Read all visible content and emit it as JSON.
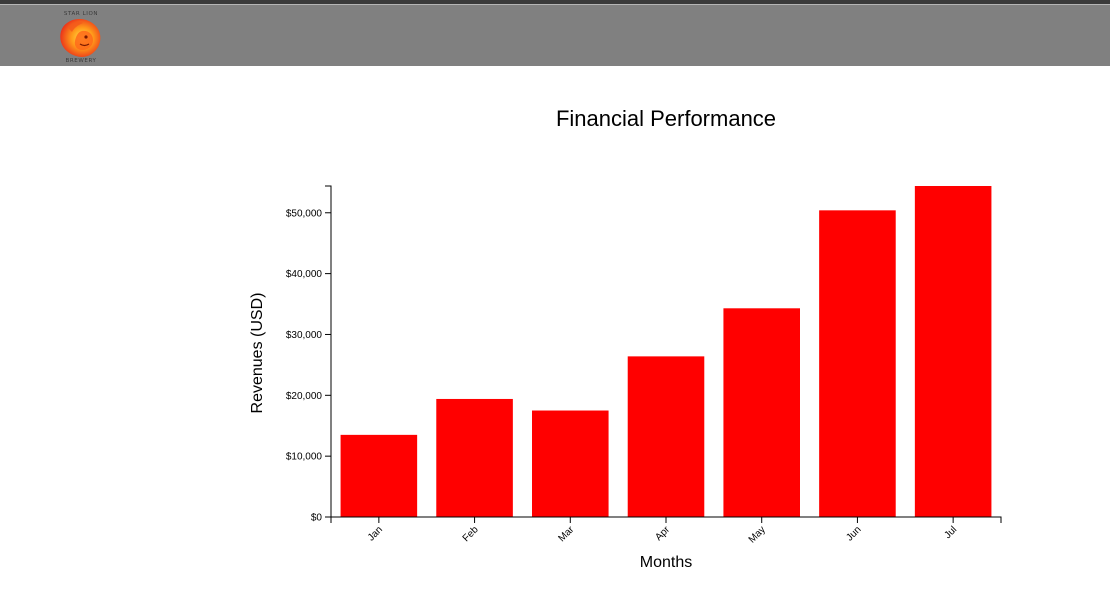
{
  "brand": {
    "top_text": "STAR LION",
    "bottom_text": "BREWERY"
  },
  "colors": {
    "header": "#808080",
    "bar": "#ff0000",
    "axis": "#000000"
  },
  "chart_data": {
    "type": "bar",
    "title": "Financial Performance",
    "xlabel": "Months",
    "ylabel": "Revenues (USD)",
    "categories": [
      "Jan",
      "Feb",
      "Mar",
      "Apr",
      "May",
      "Jun",
      "Jul"
    ],
    "values": [
      13500,
      19400,
      17500,
      26400,
      34300,
      50400,
      54400
    ],
    "ylim": [
      0,
      54400
    ],
    "yticks": [
      0,
      10000,
      20000,
      30000,
      40000,
      50000
    ],
    "ytick_labels": [
      "$0",
      "$10,000",
      "$20,000",
      "$30,000",
      "$40,000",
      "$50,000"
    ],
    "grid": false,
    "legend": "none"
  }
}
